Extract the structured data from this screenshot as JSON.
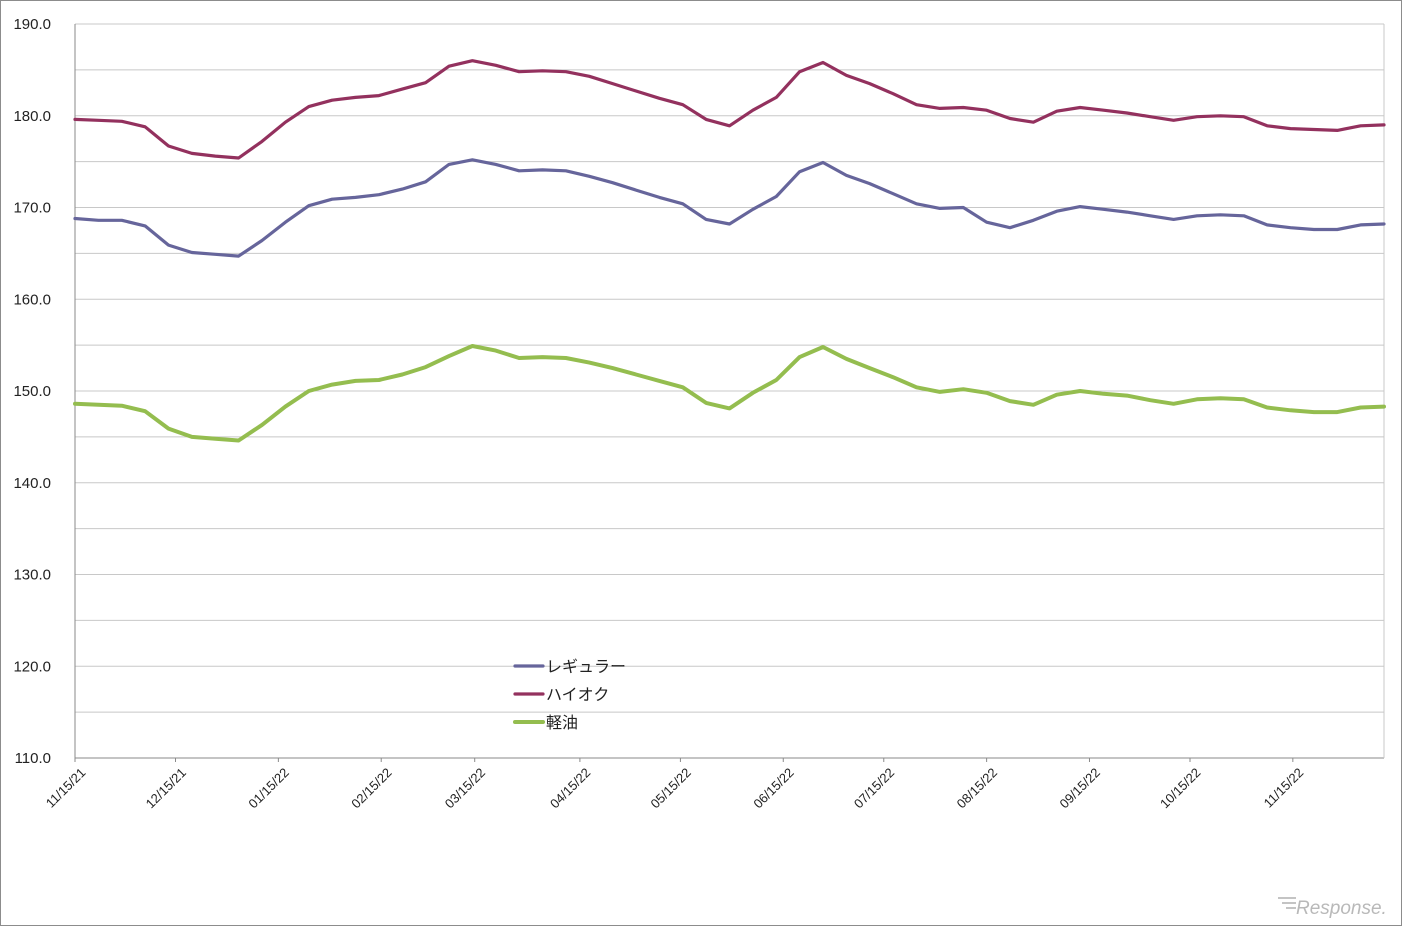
{
  "chart_data": {
    "type": "line",
    "title": "",
    "xlabel": "",
    "ylabel": "",
    "ylim": [
      110,
      190
    ],
    "yticks": [
      110,
      120,
      130,
      140,
      150,
      160,
      170,
      180,
      190
    ],
    "ytick_labels": [
      "110.0",
      "120.0",
      "130.0",
      "140.0",
      "150.0",
      "160.0",
      "170.0",
      "180.0",
      "190.0"
    ],
    "xtick_labels": [
      {
        "label": "11/15/21",
        "index": 0
      },
      {
        "label": "12/15/21",
        "index": 4.3
      },
      {
        "label": "01/15/22",
        "index": 8.7
      },
      {
        "label": "02/15/22",
        "index": 13.1
      },
      {
        "label": "03/15/22",
        "index": 17.1
      },
      {
        "label": "04/15/22",
        "index": 21.6
      },
      {
        "label": "05/15/22",
        "index": 25.9
      },
      {
        "label": "06/15/22",
        "index": 30.3
      },
      {
        "label": "07/15/22",
        "index": 34.6
      },
      {
        "label": "08/15/22",
        "index": 39.0
      },
      {
        "label": "09/15/22",
        "index": 43.4
      },
      {
        "label": "10/15/22",
        "index": 47.7
      },
      {
        "label": "11/15/22",
        "index": 52.1
      }
    ],
    "grid": true,
    "legend_position": "bottom-center",
    "series": [
      {
        "name": "レギュラー",
        "color": "#66659b",
        "values": [
          168.8,
          168.6,
          168.6,
          168.0,
          165.9,
          165.1,
          164.9,
          164.7,
          166.4,
          168.4,
          170.2,
          170.9,
          171.1,
          171.4,
          172.0,
          172.8,
          174.7,
          175.2,
          174.7,
          174.0,
          174.1,
          174.0,
          173.4,
          172.7,
          171.9,
          171.1,
          170.4,
          168.7,
          168.2,
          169.8,
          171.2,
          173.9,
          174.9,
          173.5,
          172.6,
          171.5,
          170.4,
          169.9,
          170.0,
          168.4,
          167.8,
          168.6,
          169.6,
          170.1,
          169.8,
          169.5,
          169.1,
          168.7,
          169.1,
          169.2,
          169.1,
          168.1,
          167.8,
          167.6,
          167.6,
          168.1,
          168.2
        ]
      },
      {
        "name": "ハイオク",
        "color": "#93315e",
        "values": [
          179.6,
          179.5,
          179.4,
          178.8,
          176.7,
          175.9,
          175.6,
          175.4,
          177.2,
          179.3,
          181.0,
          181.7,
          182.0,
          182.2,
          182.9,
          183.6,
          185.4,
          186.0,
          185.5,
          184.8,
          184.9,
          184.8,
          184.3,
          183.5,
          182.7,
          181.9,
          181.2,
          179.6,
          178.9,
          180.6,
          182.0,
          184.8,
          185.8,
          184.4,
          183.5,
          182.4,
          181.2,
          180.8,
          180.9,
          180.6,
          179.7,
          179.3,
          180.5,
          180.9,
          180.6,
          180.3,
          179.9,
          179.5,
          179.9,
          180.0,
          179.9,
          178.9,
          178.6,
          178.5,
          178.4,
          178.9,
          179.0
        ]
      },
      {
        "name": "軽油",
        "color": "#94bd4f",
        "values": [
          148.6,
          148.5,
          148.4,
          147.8,
          145.9,
          145.0,
          144.8,
          144.6,
          146.3,
          148.3,
          150.0,
          150.7,
          151.1,
          151.2,
          151.8,
          152.6,
          153.8,
          154.9,
          154.4,
          153.6,
          153.7,
          153.6,
          153.1,
          152.5,
          151.8,
          151.1,
          150.4,
          148.7,
          148.1,
          149.8,
          151.2,
          153.7,
          154.8,
          153.5,
          152.5,
          151.5,
          150.4,
          149.9,
          150.2,
          149.8,
          148.9,
          148.5,
          149.6,
          150.0,
          149.7,
          149.5,
          149.0,
          148.6,
          149.1,
          149.2,
          149.1,
          148.2,
          147.9,
          147.7,
          147.7,
          148.2,
          148.3
        ]
      }
    ]
  },
  "watermark": "Response."
}
